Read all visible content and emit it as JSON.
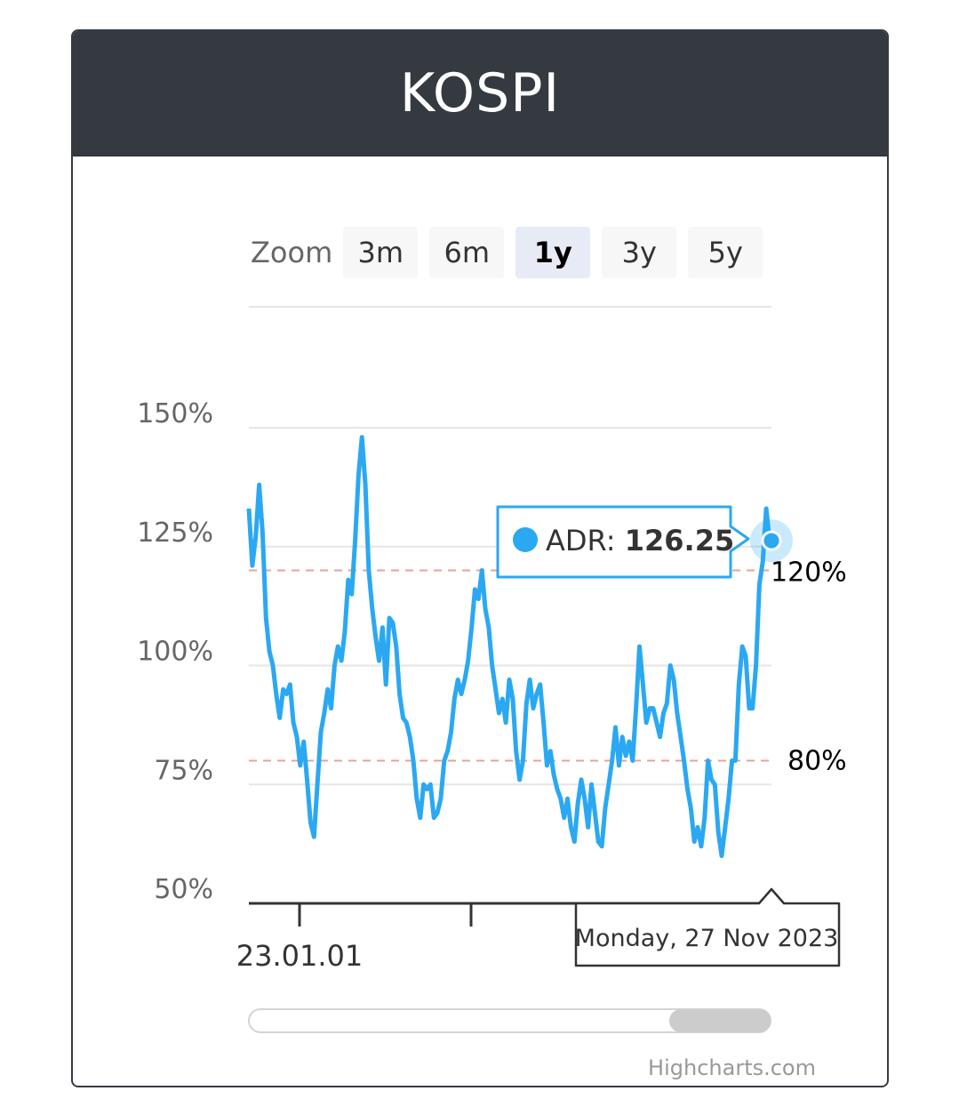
{
  "header": {
    "title": "KOSPI"
  },
  "zoom": {
    "label": "Zoom",
    "buttons": [
      {
        "label": "3m",
        "active": false
      },
      {
        "label": "6m",
        "active": false
      },
      {
        "label": "1y",
        "active": true
      },
      {
        "label": "3y",
        "active": false
      },
      {
        "label": "5y",
        "active": false
      }
    ]
  },
  "tooltip": {
    "series": "ADR",
    "value": "126.25",
    "date": "Monday, 27 Nov 2023"
  },
  "credits": "Highcharts.com",
  "colors": {
    "line": "#2aa8f2",
    "band": "#e8a29b",
    "header": "#343a40",
    "grid": "#e6e6e6"
  },
  "chart_data": {
    "type": "line",
    "title": "KOSPI",
    "series": [
      {
        "name": "ADR",
        "values": [
          133,
          121,
          127,
          138,
          128,
          110,
          103,
          100,
          94,
          89,
          95,
          94,
          96,
          88,
          85,
          79,
          84,
          76,
          67,
          64,
          75,
          86,
          90,
          95,
          91,
          100,
          104,
          101,
          107,
          118,
          115,
          126,
          140,
          148,
          138,
          120,
          112,
          106,
          101,
          108,
          96,
          110,
          109,
          104,
          94,
          89,
          88,
          85,
          80,
          72,
          68,
          75,
          74,
          75,
          68,
          69,
          72,
          80,
          82,
          86,
          93,
          97,
          94,
          97,
          101,
          108,
          116,
          114,
          120,
          112,
          108,
          100,
          95,
          90,
          93,
          88,
          97,
          93,
          82,
          76,
          80,
          92,
          97,
          91,
          94,
          96,
          88,
          79,
          82,
          77,
          74,
          72,
          68,
          72,
          66,
          63,
          71,
          76,
          72,
          66,
          75,
          69,
          63,
          62,
          70,
          75,
          80,
          87,
          79,
          85,
          81,
          84,
          80,
          91,
          104,
          96,
          88,
          91,
          91,
          88,
          85,
          90,
          92,
          100,
          97,
          90,
          85,
          80,
          74,
          70,
          63,
          66,
          62,
          68,
          80,
          76,
          75,
          65,
          60,
          66,
          72,
          80,
          80,
          96,
          104,
          102,
          91,
          91,
          100,
          117,
          122,
          133,
          126
        ]
      }
    ],
    "x_start": "2022-12-02",
    "x_end": "2023-11-27",
    "x_ticks": [
      "23.01.01"
    ],
    "y_ticks": [
      "50%",
      "75%",
      "100%",
      "125%",
      "150%"
    ],
    "ylim": [
      50,
      150
    ],
    "plot_bands": [
      {
        "value": 120,
        "label": "120%"
      },
      {
        "value": 80,
        "label": "80%"
      }
    ]
  }
}
